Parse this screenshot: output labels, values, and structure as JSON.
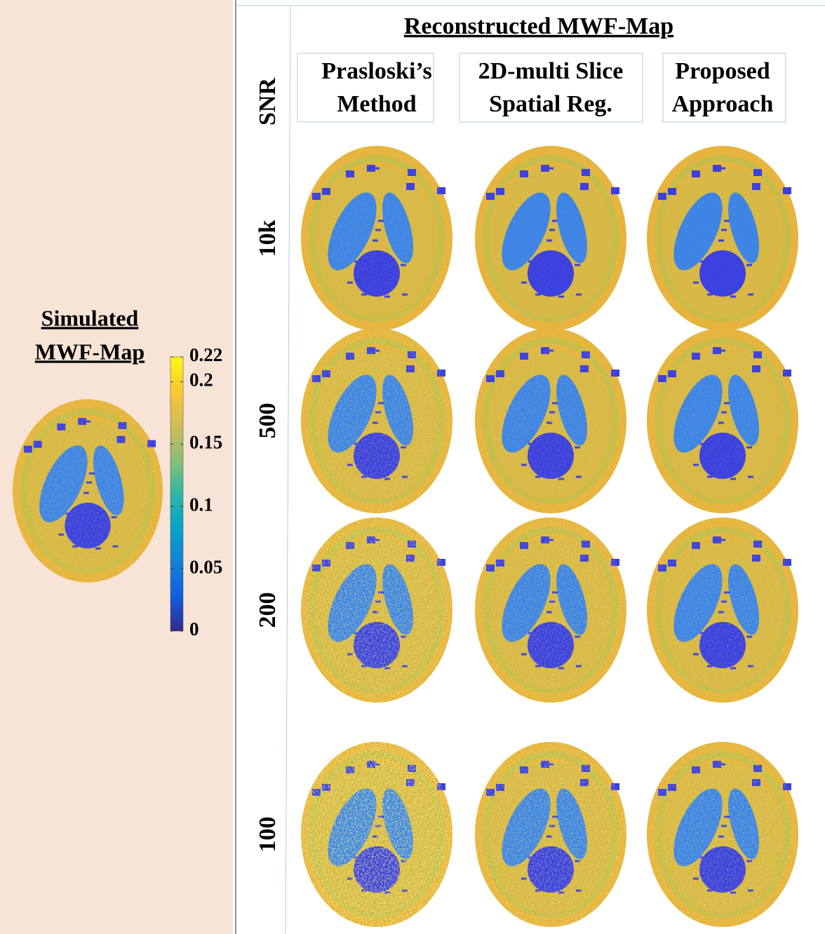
{
  "left": {
    "title_lines": [
      "Simulated",
      "MWF-Map"
    ]
  },
  "colorbar": {
    "lim": [
      0,
      0.22
    ],
    "ticks": [
      0.22,
      0.2,
      0.15,
      0.1,
      0.05,
      0
    ]
  },
  "right": {
    "title": "Reconstructed MWF-Map",
    "snr_label": "SNR",
    "columns": [
      [
        "Prasloski’s",
        "Method"
      ],
      [
        "2D-multi Slice",
        "Spatial Reg."
      ],
      [
        "Proposed",
        "Approach"
      ]
    ],
    "rows": [
      "10k",
      "500",
      "200",
      "100"
    ]
  }
}
